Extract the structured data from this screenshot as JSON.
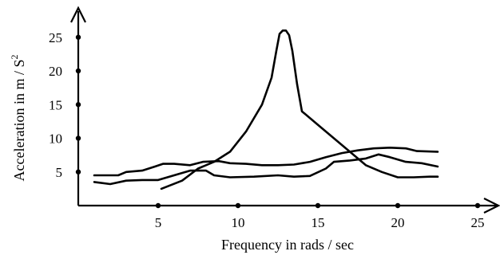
{
  "chart_data": {
    "type": "line",
    "xlabel": "Frequency in rads / sec",
    "ylabel": "Acceleration in m / S",
    "ylabel_superscript": "2",
    "xlim": [
      0,
      26
    ],
    "ylim": [
      0,
      28
    ],
    "x_ticks": [
      5,
      10,
      15,
      20,
      25
    ],
    "x_tick_labels": [
      "5",
      "10",
      "15",
      "20",
      "25"
    ],
    "y_ticks": [
      5,
      10,
      15,
      20,
      25
    ],
    "y_tick_labels": [
      "5",
      "10",
      "15",
      "20",
      "25"
    ],
    "grid": false,
    "legend": false,
    "series": [
      {
        "points": [
          [
            5.2,
            2.5
          ],
          [
            6.5,
            3.7
          ],
          [
            7.5,
            5.5
          ],
          [
            8.5,
            6.5
          ],
          [
            9.5,
            8.0
          ],
          [
            10.5,
            11.0
          ],
          [
            11.5,
            15.0
          ],
          [
            12.1,
            19.0
          ],
          [
            12.4,
            23.0
          ],
          [
            12.6,
            25.5
          ],
          [
            12.8,
            26.0
          ],
          [
            13.0,
            26.0
          ],
          [
            13.2,
            25.3
          ],
          [
            13.4,
            23.0
          ],
          [
            13.7,
            18.0
          ],
          [
            14.0,
            14.0
          ],
          [
            15.0,
            12.0
          ],
          [
            16.0,
            10.0
          ],
          [
            17.0,
            8.0
          ],
          [
            18.0,
            6.0
          ],
          [
            19.0,
            5.0
          ],
          [
            20.0,
            4.2
          ],
          [
            21.0,
            4.2
          ],
          [
            22.0,
            4.3
          ],
          [
            22.5,
            4.3
          ]
        ]
      },
      {
        "points": [
          [
            1.0,
            4.5
          ],
          [
            2.5,
            4.5
          ],
          [
            3.0,
            5.0
          ],
          [
            4.0,
            5.2
          ],
          [
            4.8,
            5.8
          ],
          [
            5.3,
            6.2
          ],
          [
            6.0,
            6.2
          ],
          [
            7.0,
            6.0
          ],
          [
            7.8,
            6.5
          ],
          [
            8.8,
            6.6
          ],
          [
            9.5,
            6.3
          ],
          [
            10.5,
            6.2
          ],
          [
            11.5,
            6.0
          ],
          [
            12.5,
            6.0
          ],
          [
            13.5,
            6.1
          ],
          [
            14.5,
            6.5
          ],
          [
            15.5,
            7.2
          ],
          [
            16.5,
            7.8
          ],
          [
            17.5,
            8.2
          ],
          [
            18.5,
            8.5
          ],
          [
            19.5,
            8.6
          ],
          [
            20.5,
            8.5
          ],
          [
            21.2,
            8.1
          ],
          [
            22.5,
            8.0
          ]
        ]
      },
      {
        "points": [
          [
            1.0,
            3.5
          ],
          [
            2.0,
            3.2
          ],
          [
            3.0,
            3.7
          ],
          [
            4.0,
            3.8
          ],
          [
            5.0,
            3.8
          ],
          [
            6.0,
            4.5
          ],
          [
            7.0,
            5.2
          ],
          [
            8.0,
            5.2
          ],
          [
            8.5,
            4.5
          ],
          [
            9.5,
            4.2
          ],
          [
            11.0,
            4.3
          ],
          [
            12.5,
            4.5
          ],
          [
            13.5,
            4.3
          ],
          [
            14.5,
            4.4
          ],
          [
            15.5,
            5.5
          ],
          [
            16.0,
            6.5
          ],
          [
            17.0,
            6.7
          ],
          [
            18.0,
            7.0
          ],
          [
            18.8,
            7.6
          ],
          [
            19.5,
            7.2
          ],
          [
            20.5,
            6.5
          ],
          [
            21.5,
            6.3
          ],
          [
            22.5,
            5.8
          ]
        ]
      }
    ]
  }
}
